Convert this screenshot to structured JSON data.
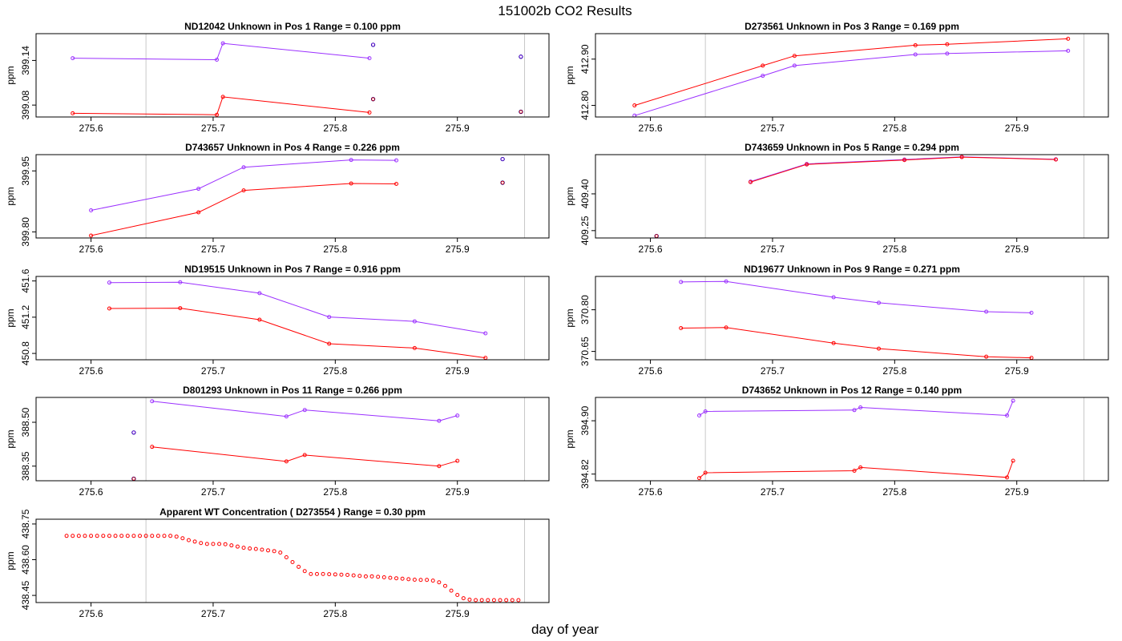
{
  "title": "151002b  CO2 Results",
  "xlabel": "day of year",
  "colors": {
    "series_a": "#9b30ff",
    "series_b": "#ff0000",
    "marker": "#000080",
    "refline": "#c8c8c8"
  },
  "chart_data": [
    {
      "type": "line",
      "title": "ND12042    Unknown in Pos 1         Range =  0.100 ppm",
      "ylabel": "ppm",
      "xlim": [
        275.555,
        275.975
      ],
      "ylim": [
        399.064,
        399.176
      ],
      "xticks": [
        "275.6",
        "275.7",
        "275.8",
        "275.9"
      ],
      "yticks": [
        "399.08",
        "399.14"
      ],
      "vlines": [
        275.645,
        275.955
      ],
      "series": [
        {
          "name": "purple",
          "x": [
            275.585,
            275.703,
            275.708,
            275.828
          ],
          "y": [
            399.143,
            399.141,
            399.163,
            399.143
          ]
        },
        {
          "name": "red",
          "x": [
            275.585,
            275.703,
            275.708,
            275.828
          ],
          "y": [
            399.069,
            399.067,
            399.091,
            399.07
          ]
        }
      ],
      "singles": [
        {
          "x": 275.831,
          "y": 399.161,
          "color": "purple"
        },
        {
          "x": 275.831,
          "y": 399.088,
          "color": "red"
        },
        {
          "x": 275.952,
          "y": 399.145,
          "color": "purple"
        },
        {
          "x": 275.952,
          "y": 399.071,
          "color": "red"
        }
      ]
    },
    {
      "type": "line",
      "title": "D273561    Unknown in Pos 3         Range =  0.169 ppm",
      "ylabel": "ppm",
      "xlim": [
        275.555,
        275.975
      ],
      "ylim": [
        412.775,
        412.955
      ],
      "xticks": [
        "275.6",
        "275.7",
        "275.8",
        "275.9"
      ],
      "yticks": [
        "412.80",
        "412.90"
      ],
      "vlines": [
        275.645,
        275.955
      ],
      "series": [
        {
          "name": "purple",
          "x": [
            275.587,
            275.692,
            275.718,
            275.817,
            275.843,
            275.942
          ],
          "y": [
            412.778,
            412.864,
            412.886,
            412.91,
            412.912,
            412.918
          ]
        },
        {
          "name": "red",
          "x": [
            275.587,
            275.692,
            275.718,
            275.817,
            275.843,
            275.942
          ],
          "y": [
            412.8,
            412.886,
            412.907,
            412.93,
            412.932,
            412.944
          ]
        }
      ],
      "singles": []
    },
    {
      "type": "line",
      "title": "D743657    Unknown in Pos 4         Range =  0.226 ppm",
      "ylabel": "ppm",
      "xlim": [
        275.555,
        275.975
      ],
      "ylim": [
        399.785,
        399.99
      ],
      "xticks": [
        "275.6",
        "275.7",
        "275.8",
        "275.9"
      ],
      "yticks": [
        "399.80",
        "399.95"
      ],
      "vlines": [
        275.645,
        275.955
      ],
      "series": [
        {
          "name": "purple",
          "x": [
            275.6,
            275.688,
            275.725,
            275.813,
            275.85
          ],
          "y": [
            399.853,
            399.906,
            399.959,
            399.977,
            399.976
          ]
        },
        {
          "name": "red",
          "x": [
            275.6,
            275.688,
            275.725,
            275.813,
            275.85
          ],
          "y": [
            399.791,
            399.848,
            399.902,
            399.919,
            399.918
          ]
        }
      ],
      "singles": [
        {
          "x": 275.937,
          "y": 399.979,
          "color": "purple"
        },
        {
          "x": 275.937,
          "y": 399.921,
          "color": "red"
        }
      ]
    },
    {
      "type": "line",
      "title": "D743659    Unknown in Pos 5         Range =  0.294 ppm",
      "ylabel": "ppm",
      "xlim": [
        275.555,
        275.975
      ],
      "ylim": [
        409.22,
        409.56
      ],
      "xticks": [
        "275.6",
        "275.7",
        "275.8",
        "275.9"
      ],
      "yticks": [
        "409.25",
        "409.40"
      ],
      "vlines": [
        275.645,
        275.955
      ],
      "series": [
        {
          "name": "purple",
          "x": [
            275.682,
            275.728,
            275.808,
            275.855,
            275.932
          ],
          "y": [
            409.45,
            409.522,
            409.54,
            409.551,
            409.541
          ]
        },
        {
          "name": "red",
          "x": [
            275.682,
            275.728,
            275.808,
            275.855,
            275.932
          ],
          "y": [
            409.448,
            409.52,
            409.538,
            409.55,
            409.54
          ]
        }
      ],
      "singles": [
        {
          "x": 275.605,
          "y": 409.228,
          "color": "red"
        }
      ]
    },
    {
      "type": "line",
      "title": "ND19515    Unknown in Pos 7         Range =  0.916 ppm",
      "ylabel": "ppm",
      "xlim": [
        275.555,
        275.975
      ],
      "ylim": [
        450.73,
        451.65
      ],
      "xticks": [
        "275.6",
        "275.7",
        "275.8",
        "275.9"
      ],
      "yticks": [
        "450.8",
        "451.2",
        "451.6"
      ],
      "vlines": [
        275.645,
        275.955
      ],
      "series": [
        {
          "name": "purple",
          "x": [
            275.615,
            275.673,
            275.738,
            275.795,
            275.865,
            275.923
          ],
          "y": [
            451.582,
            451.586,
            451.465,
            451.202,
            451.154,
            451.022
          ]
        },
        {
          "name": "red",
          "x": [
            275.615,
            275.673,
            275.738,
            275.795,
            275.865,
            275.923
          ],
          "y": [
            451.296,
            451.3,
            451.172,
            450.907,
            450.859,
            450.751
          ]
        }
      ],
      "singles": []
    },
    {
      "type": "line",
      "title": "ND19677    Unknown in Pos 9         Range =  0.271 ppm",
      "ylabel": "ppm",
      "xlim": [
        275.555,
        275.975
      ],
      "ylim": [
        370.62,
        370.92
      ],
      "xticks": [
        "275.6",
        "275.7",
        "275.8",
        "275.9"
      ],
      "yticks": [
        "370.65",
        "370.80"
      ],
      "vlines": [
        275.645,
        275.955
      ],
      "series": [
        {
          "name": "purple",
          "x": [
            275.625,
            275.662,
            275.75,
            275.787,
            275.875,
            275.912
          ],
          "y": [
            370.9,
            370.902,
            370.845,
            370.825,
            370.793,
            370.789
          ]
        },
        {
          "name": "red",
          "x": [
            275.625,
            275.662,
            275.75,
            275.787,
            275.875,
            275.912
          ],
          "y": [
            370.734,
            370.736,
            370.68,
            370.66,
            370.631,
            370.627
          ]
        }
      ],
      "singles": []
    },
    {
      "type": "line",
      "title": "D801293    Unknown in Pos 11         Range =  0.266 ppm",
      "ylabel": "ppm",
      "xlim": [
        275.555,
        275.975
      ],
      "ylim": [
        388.3,
        388.585
      ],
      "xticks": [
        "275.6",
        "275.7",
        "275.8",
        "275.9"
      ],
      "yticks": [
        "388.35",
        "388.50"
      ],
      "vlines": [
        275.645,
        275.955
      ],
      "series": [
        {
          "name": "purple",
          "x": [
            275.65,
            275.76,
            275.775,
            275.885,
            275.9
          ],
          "y": [
            388.572,
            388.52,
            388.542,
            388.505,
            388.523
          ]
        },
        {
          "name": "red",
          "x": [
            275.65,
            275.76,
            275.775,
            275.885,
            275.9
          ],
          "y": [
            388.416,
            388.366,
            388.388,
            388.35,
            388.368
          ]
        }
      ],
      "singles": [
        {
          "x": 275.635,
          "y": 388.465,
          "color": "purple"
        },
        {
          "x": 275.635,
          "y": 388.307,
          "color": "red"
        }
      ]
    },
    {
      "type": "line",
      "title": "D743652    Unknown in Pos 12         Range =  0.140 ppm",
      "ylabel": "ppm",
      "xlim": [
        275.555,
        275.975
      ],
      "ylim": [
        394.81,
        394.935
      ],
      "xticks": [
        "275.6",
        "275.7",
        "275.8",
        "275.9"
      ],
      "yticks": [
        "394.82",
        "394.90"
      ],
      "vlines": [
        275.645,
        275.955
      ],
      "series": [
        {
          "name": "purple",
          "x": [
            275.64,
            275.645,
            275.767,
            275.772,
            275.892,
            275.897
          ],
          "y": [
            394.908,
            394.914,
            394.916,
            394.92,
            394.908,
            394.93
          ]
        },
        {
          "name": "red",
          "x": [
            275.64,
            275.645,
            275.767,
            275.772,
            275.892,
            275.897
          ],
          "y": [
            394.814,
            394.822,
            394.825,
            394.83,
            394.815,
            394.84
          ]
        }
      ],
      "singles": []
    },
    {
      "type": "scatter",
      "title": "Apparent WT Concentration ( D273554 )         Range = 0.30 ppm",
      "ylabel": "ppm",
      "xlim": [
        275.555,
        275.975
      ],
      "ylim": [
        438.42,
        438.77
      ],
      "xticks": [
        "275.6",
        "275.7",
        "275.8",
        "275.9"
      ],
      "yticks": [
        "438.45",
        "438.60",
        "438.75"
      ],
      "vlines": [
        275.645,
        275.955
      ],
      "series": [
        {
          "name": "red",
          "x": [
            275.58,
            275.585,
            275.59,
            275.595,
            275.6,
            275.605,
            275.61,
            275.615,
            275.62,
            275.625,
            275.63,
            275.635,
            275.64,
            275.645,
            275.65,
            275.655,
            275.66,
            275.665,
            275.67,
            275.675,
            275.68,
            275.685,
            275.69,
            275.695,
            275.7,
            275.705,
            275.71,
            275.715,
            275.72,
            275.725,
            275.73,
            275.735,
            275.74,
            275.745,
            275.75,
            275.755,
            275.76,
            275.765,
            275.77,
            275.775,
            275.78,
            275.785,
            275.79,
            275.795,
            275.8,
            275.805,
            275.81,
            275.815,
            275.82,
            275.825,
            275.83,
            275.835,
            275.84,
            275.845,
            275.85,
            275.855,
            275.86,
            275.865,
            275.87,
            275.875,
            275.88,
            275.885,
            275.89,
            275.895,
            275.9,
            275.905,
            275.91,
            275.915,
            275.92,
            275.925,
            275.93,
            275.935,
            275.94,
            275.945,
            275.95
          ],
          "y": [
            438.7,
            438.7,
            438.7,
            438.7,
            438.7,
            438.7,
            438.7,
            438.7,
            438.7,
            438.7,
            438.7,
            438.7,
            438.7,
            438.7,
            438.7,
            438.7,
            438.7,
            438.7,
            438.697,
            438.69,
            438.682,
            438.676,
            438.67,
            438.666,
            438.666,
            438.666,
            438.665,
            438.66,
            438.655,
            438.65,
            438.647,
            438.645,
            438.642,
            438.639,
            438.636,
            438.63,
            438.61,
            438.59,
            438.57,
            438.552,
            438.54,
            438.54,
            438.54,
            438.539,
            438.538,
            438.537,
            438.536,
            438.534,
            438.532,
            438.53,
            438.53,
            438.528,
            438.526,
            438.524,
            438.522,
            438.52,
            438.518,
            438.516,
            438.515,
            438.515,
            438.512,
            438.505,
            438.49,
            438.47,
            438.452,
            438.438,
            438.432,
            438.43,
            438.43,
            438.43,
            438.43,
            438.43,
            438.43,
            438.43,
            438.43
          ]
        }
      ],
      "singles": []
    }
  ]
}
